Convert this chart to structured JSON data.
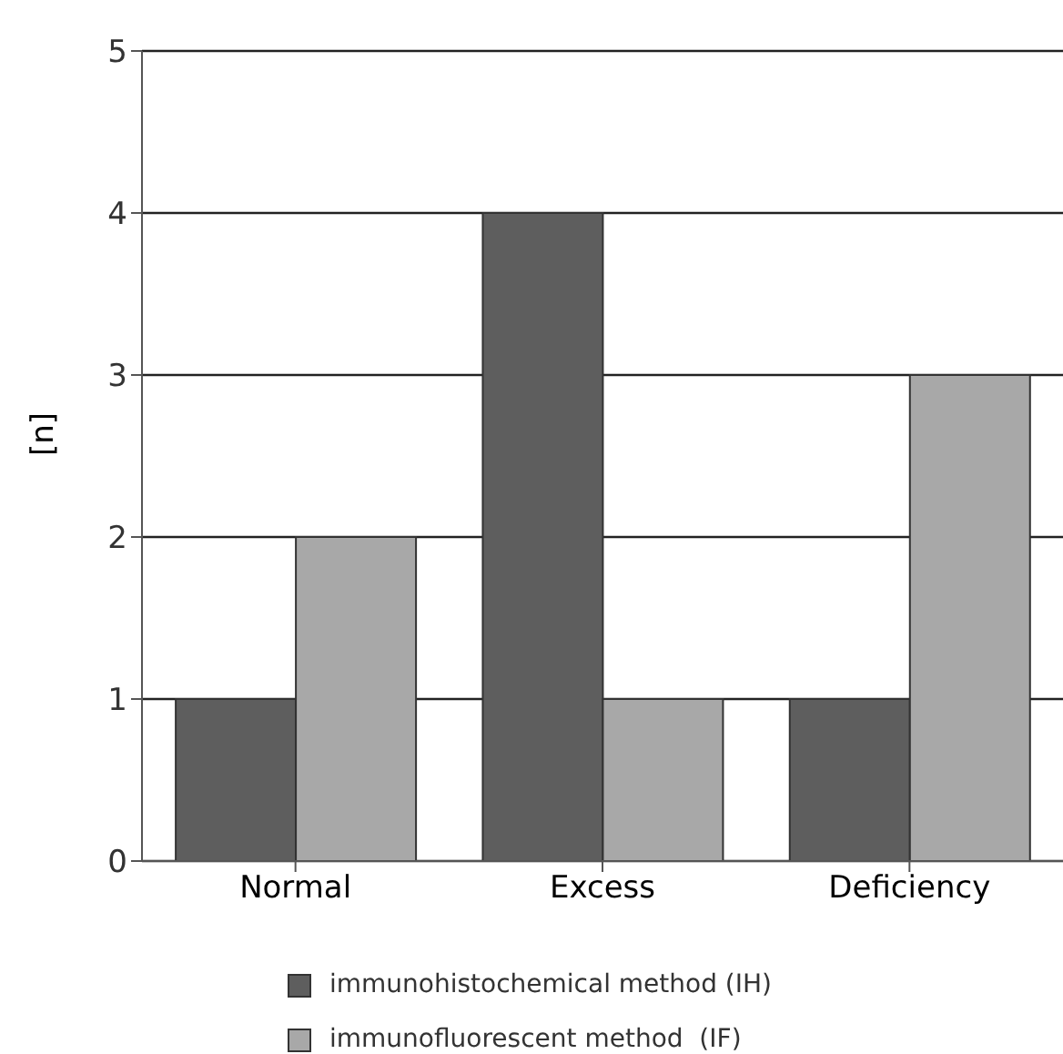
{
  "chart_data": {
    "type": "bar",
    "ylabel": "[n]",
    "categories": [
      "Normal",
      "Excess",
      "Deficiency"
    ],
    "series": [
      {
        "name": "immunohistochemical method (IH)",
        "color": "#5e5e5e",
        "values": [
          1,
          4,
          1
        ]
      },
      {
        "name": "immunofluorescent method  (IF)",
        "color": "#a8a8a8",
        "values": [
          2,
          1,
          3
        ]
      }
    ],
    "ylim": [
      0,
      5
    ],
    "yticks": [
      0,
      1,
      2,
      3,
      4,
      5
    ],
    "grid": "y",
    "legend": "bottom"
  }
}
